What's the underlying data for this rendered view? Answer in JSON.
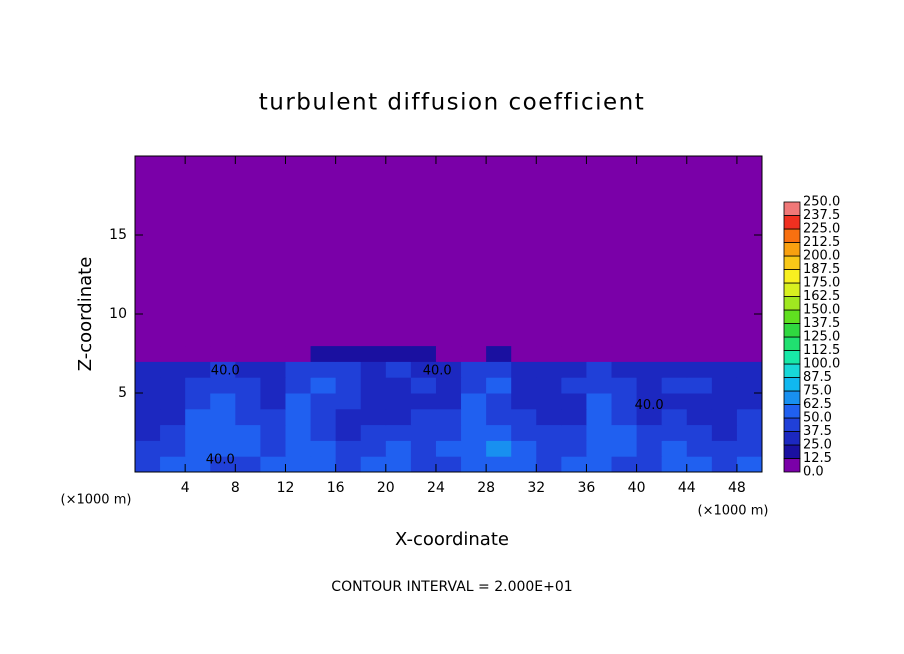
{
  "chart_data": {
    "type": "heatmap",
    "title": "turbulent diffusion coefficient",
    "xlabel": "X-coordinate",
    "ylabel": "Z-coordinate",
    "x_unit_label": "(×1000 m)",
    "y_unit_label": "(×1000 m)",
    "footer": "CONTOUR INTERVAL = 2.000E+01",
    "xlim": [
      0,
      50
    ],
    "ylim": [
      0,
      20
    ],
    "xticks": [
      4,
      8,
      12,
      16,
      20,
      24,
      28,
      32,
      36,
      40,
      44,
      48
    ],
    "yticks": [
      5,
      10,
      15
    ],
    "x_edges": [
      0,
      2,
      4,
      6,
      8,
      10,
      12,
      14,
      16,
      18,
      20,
      22,
      24,
      26,
      28,
      30,
      32,
      34,
      36,
      38,
      40,
      42,
      44,
      46,
      48,
      50
    ],
    "y_edges": [
      0,
      1,
      2,
      3,
      4,
      5,
      6,
      7,
      8,
      20
    ],
    "z": [
      [
        45,
        50,
        55,
        45,
        40,
        50,
        55,
        60,
        45,
        50,
        55,
        40,
        45,
        50,
        60,
        55,
        45,
        50,
        55,
        45,
        40,
        50,
        55,
        45,
        50
      ],
      [
        40,
        45,
        55,
        60,
        50,
        45,
        55,
        50,
        40,
        45,
        50,
        45,
        50,
        55,
        65,
        50,
        40,
        45,
        50,
        55,
        45,
        50,
        45,
        40,
        45
      ],
      [
        35,
        40,
        55,
        60,
        55,
        45,
        50,
        45,
        35,
        40,
        45,
        40,
        45,
        60,
        55,
        45,
        40,
        40,
        55,
        50,
        40,
        45,
        40,
        35,
        45
      ],
      [
        30,
        35,
        50,
        55,
        45,
        40,
        55,
        40,
        35,
        30,
        35,
        40,
        40,
        55,
        45,
        40,
        35,
        35,
        55,
        45,
        35,
        40,
        35,
        30,
        40
      ],
      [
        30,
        30,
        45,
        50,
        40,
        35,
        50,
        45,
        40,
        30,
        30,
        35,
        35,
        50,
        40,
        35,
        30,
        35,
        50,
        40,
        30,
        35,
        30,
        30,
        35
      ],
      [
        30,
        35,
        40,
        45,
        40,
        35,
        45,
        55,
        40,
        35,
        35,
        40,
        35,
        45,
        50,
        35,
        35,
        40,
        45,
        40,
        35,
        40,
        40,
        35,
        30
      ],
      [
        25,
        30,
        35,
        40,
        35,
        30,
        40,
        45,
        40,
        35,
        40,
        35,
        35,
        40,
        45,
        30,
        25,
        35,
        40,
        35,
        30,
        35,
        30,
        30,
        30
      ],
      [
        0,
        0,
        0,
        0,
        0,
        0,
        10,
        15,
        20,
        20,
        15,
        15,
        10,
        10,
        15,
        5,
        0,
        0,
        0,
        0,
        0,
        0,
        0,
        0,
        0
      ],
      [
        0,
        0,
        0,
        0,
        0,
        0,
        0,
        0,
        0,
        0,
        0,
        0,
        0,
        0,
        0,
        0,
        0,
        0,
        0,
        0,
        0,
        0,
        0,
        0,
        0
      ]
    ],
    "colorbar": {
      "ticks": [
        {
          "value": 0,
          "label": "0.0"
        },
        {
          "value": 12.5,
          "label": "12.5"
        },
        {
          "value": 25,
          "label": "25.0"
        },
        {
          "value": 37.5,
          "label": "37.5"
        },
        {
          "value": 50,
          "label": "50.0"
        },
        {
          "value": 62.5,
          "label": "62.5"
        },
        {
          "value": 75,
          "label": "75.0"
        },
        {
          "value": 87.5,
          "label": "87.5"
        },
        {
          "value": 100,
          "label": "100.0"
        },
        {
          "value": 112.5,
          "label": "112.5"
        },
        {
          "value": 125,
          "label": "125.0"
        },
        {
          "value": 137.5,
          "label": "137.5"
        },
        {
          "value": 150,
          "label": "150.0"
        },
        {
          "value": 162.5,
          "label": "162.5"
        },
        {
          "value": 175,
          "label": "175.0"
        },
        {
          "value": 187.5,
          "label": "187.5"
        },
        {
          "value": 200,
          "label": "200.0"
        },
        {
          "value": 212.5,
          "label": "212.5"
        },
        {
          "value": 225,
          "label": "225.0"
        },
        {
          "value": 237.5,
          "label": "237.5"
        },
        {
          "value": 250,
          "label": "250.0"
        }
      ],
      "colors": [
        "#7a00a8",
        "#1a10a0",
        "#1c28c0",
        "#2040d8",
        "#2060f0",
        "#1890f0",
        "#10b8f0",
        "#18d8d8",
        "#18e8a8",
        "#20e070",
        "#30d840",
        "#60e020",
        "#a0e820",
        "#d8f020",
        "#f8f020",
        "#f8c818",
        "#f8a010",
        "#f87010",
        "#f03020",
        "#f07878"
      ]
    },
    "annotations": [
      {
        "text": "40.0",
        "x": 7.2,
        "y": 6.4
      },
      {
        "text": "40.0",
        "x": 24.1,
        "y": 6.4
      },
      {
        "text": "40.0",
        "x": 6.8,
        "y": 0.75
      },
      {
        "text": "40.0",
        "x": 41,
        "y": 4.2
      }
    ]
  }
}
